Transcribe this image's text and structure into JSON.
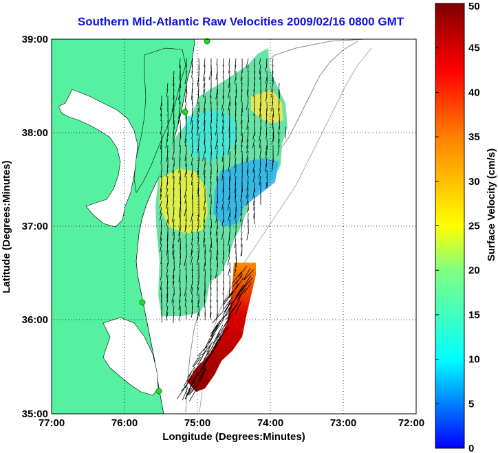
{
  "title": "Southern Mid-Atlantic Raw Velocities 2009/02/16 0800 GMT",
  "x_axis": {
    "label": "Longitude (Degrees:Minutes)",
    "ticks": [
      "77:00",
      "76:00",
      "75:00",
      "74:00",
      "73:00",
      "72:00"
    ]
  },
  "y_axis": {
    "label": "Latitude (Degrees:Minutes)",
    "ticks": [
      "39:00",
      "38:00",
      "37:00",
      "36:00",
      "35:00"
    ]
  },
  "colorbar": {
    "label": "Surface Velocity (cm/s)",
    "ticks": [
      "50",
      "45",
      "40",
      "35",
      "30",
      "25",
      "20",
      "15",
      "10",
      "5",
      "0"
    ],
    "min": 0,
    "max": 50
  },
  "colors": {
    "title": "#1010e0",
    "land": "#55f0a0",
    "site_marker": "#22dd22"
  },
  "extent": {
    "lon": [
      -77,
      -72
    ],
    "lat": [
      35,
      39
    ]
  },
  "gridlines": "dotted"
}
